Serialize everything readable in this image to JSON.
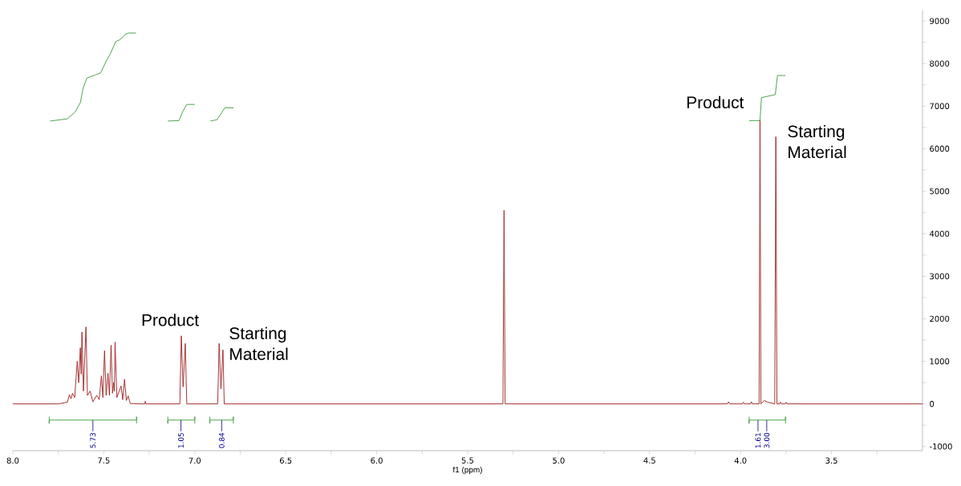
{
  "chart_data": {
    "type": "line",
    "xlabel": "f1 (ppm)",
    "xlim": [
      8.0,
      3.0
    ],
    "ylim": [
      -1100,
      9250
    ],
    "xticks": [
      {
        "value": 8.0,
        "label": "8.0"
      },
      {
        "value": 7.75,
        "label": null
      },
      {
        "value": 7.5,
        "label": "7.5"
      },
      {
        "value": 7.25,
        "label": null
      },
      {
        "value": 7.0,
        "label": "7.0"
      },
      {
        "value": 6.75,
        "label": null
      },
      {
        "value": 6.5,
        "label": "6.5"
      },
      {
        "value": 6.25,
        "label": null
      },
      {
        "value": 6.0,
        "label": "6.0"
      },
      {
        "value": 5.75,
        "label": null
      },
      {
        "value": 5.5,
        "label": "5.5"
      },
      {
        "value": 5.25,
        "label": null
      },
      {
        "value": 5.0,
        "label": "5.0"
      },
      {
        "value": 4.75,
        "label": null
      },
      {
        "value": 4.5,
        "label": "4.5"
      },
      {
        "value": 4.25,
        "label": null
      },
      {
        "value": 4.0,
        "label": "4.0"
      },
      {
        "value": 3.75,
        "label": null
      },
      {
        "value": 3.5,
        "label": "3.5"
      },
      {
        "value": 3.25,
        "label": null
      }
    ],
    "yticks": [
      -1000,
      {
        "value": -500,
        "label": null
      },
      0,
      {
        "value": 500,
        "label": null
      },
      1000,
      {
        "value": 1500,
        "label": null
      },
      2000,
      {
        "value": 2500,
        "label": null
      },
      3000,
      {
        "value": 3500,
        "label": null
      },
      4000,
      {
        "value": 4500,
        "label": null
      },
      5000,
      {
        "value": 5500,
        "label": null
      },
      6000,
      {
        "value": 6500,
        "label": null
      },
      7000,
      {
        "value": 7500,
        "label": null
      },
      8000,
      {
        "value": 8500,
        "label": null
      },
      9000
    ],
    "series": [
      {
        "color": "#9e1f1f",
        "x": [
          8.0,
          7.75,
          7.7,
          7.689,
          7.68,
          7.672,
          7.66,
          7.646,
          7.638,
          7.629,
          7.624,
          7.62,
          7.612,
          7.598,
          7.59,
          7.575,
          7.56,
          7.539,
          7.525,
          7.513,
          7.505,
          7.496,
          7.487,
          7.477,
          7.469,
          7.46,
          7.452,
          7.446,
          7.442,
          7.438,
          7.428,
          7.405,
          7.396,
          7.386,
          7.376,
          7.366,
          7.355,
          7.3,
          7.275,
          7.272,
          7.268,
          7.082,
          7.074,
          7.064,
          7.052,
          7.044,
          6.874,
          6.866,
          6.856,
          6.845,
          6.838,
          5.306,
          5.3,
          5.294,
          4.072,
          4.066,
          4.06,
          3.99,
          3.985,
          3.98,
          3.945,
          3.94,
          3.935,
          3.898,
          3.893,
          3.888,
          3.87,
          3.85,
          3.812,
          3.806,
          3.8,
          3.785,
          3.78,
          3.775,
          3.755,
          3.75,
          3.745,
          3.0
        ],
        "values": [
          0,
          0,
          40,
          220,
          120,
          250,
          150,
          1000,
          500,
          1320,
          700,
          1690,
          300,
          1810,
          200,
          300,
          50,
          200,
          100,
          660,
          150,
          1250,
          200,
          720,
          200,
          1380,
          250,
          500,
          300,
          1450,
          150,
          420,
          100,
          580,
          80,
          190,
          10,
          0,
          0,
          60,
          0,
          0,
          1600,
          400,
          1420,
          0,
          0,
          1420,
          350,
          1270,
          0,
          0,
          4550,
          0,
          0,
          50,
          0,
          0,
          40,
          0,
          0,
          50,
          0,
          0,
          6680,
          0,
          80,
          40,
          0,
          6280,
          0,
          0,
          40,
          0,
          0,
          40,
          0,
          0
        ]
      },
      {
        "color": "#3c9a3c",
        "x": [
          7.795,
          7.701,
          7.658,
          7.629,
          7.614,
          7.593,
          7.549,
          7.518,
          7.484,
          7.463,
          7.434,
          7.412,
          7.38,
          7.362,
          7.323,
          7.2,
          7.148,
          7.087,
          7.065,
          7.044,
          7.0,
          6.95,
          6.914,
          6.878,
          6.856,
          6.835,
          6.787,
          4.2,
          3.953,
          3.893,
          3.885,
          3.809,
          3.797,
          3.753
        ],
        "values": [
          6650,
          6700,
          6860,
          7080,
          7420,
          7660,
          7730,
          7780,
          8080,
          8240,
          8520,
          8560,
          8690,
          8720,
          8720,
          null,
          6650,
          6660,
          6880,
          7040,
          7040,
          null,
          6650,
          6680,
          6820,
          6960,
          6960,
          null,
          6660,
          6660,
          7200,
          7270,
          7720,
          7720
        ]
      },
      {
        "color": "#3c9a3c",
        "x": [
          7.8,
          7.8,
          7.8,
          7.32,
          7.32,
          7.32,
          7.2,
          7.148,
          7.148,
          7.148,
          7.0,
          7.0,
          7.0,
          6.95,
          6.917,
          6.917,
          6.917,
          6.788,
          6.788,
          6.788,
          4.2,
          3.953,
          3.953,
          3.953,
          3.753,
          3.753,
          3.753
        ],
        "values": [
          -300,
          -460,
          -380,
          -380,
          -300,
          -460,
          null,
          -300,
          -460,
          -380,
          -380,
          -300,
          -460,
          null,
          -300,
          -460,
          -380,
          -380,
          -300,
          -460,
          null,
          -300,
          -460,
          -380,
          -380,
          -300,
          -460
        ]
      }
    ],
    "annotations": [
      {
        "text": "5.73",
        "x": 7.56,
        "y": -380
      },
      {
        "text": "1.05",
        "x": 7.076,
        "y": -380
      },
      {
        "text": "0.84",
        "x": 6.852,
        "y": -380
      },
      {
        "text": "1.61",
        "x": 3.904,
        "y": -380
      },
      {
        "text": "3.00",
        "x": 3.856,
        "y": -380
      },
      {
        "text": "Product",
        "x": 7.074,
        "y": 1600
      },
      {
        "text": "Starting Material",
        "x": 6.866,
        "y": 1420
      },
      {
        "text": "Product",
        "x": 3.893,
        "y": 6680
      },
      {
        "text": "Starting Material",
        "x": 3.806,
        "y": 6280
      }
    ]
  }
}
